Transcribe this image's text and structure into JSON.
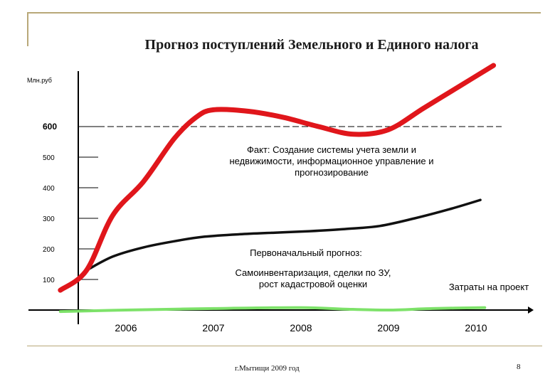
{
  "title": "Прогноз поступлений Земельного и Единого налога",
  "footer": "г.Мытищи 2009 год",
  "page_number": "8",
  "chart_data": {
    "type": "line",
    "ylabel": "Млн.руб",
    "x_categories": [
      "2006",
      "2007",
      "2008",
      "2009",
      "2010"
    ],
    "y_ticks": [
      "100",
      "200",
      "300",
      "400",
      "500",
      "600"
    ],
    "reference_line": {
      "y": 600,
      "style": "dashed"
    },
    "series": [
      {
        "name": "Факт: Создание системы учета земли и недвижимости, информационное управление и прогнозирование",
        "color": "#e0161b",
        "x": [
          2005.25,
          2005.55,
          2005.85,
          2006.2,
          2006.55,
          2006.8,
          2007.0,
          2007.4,
          2007.8,
          2008.2,
          2008.6,
          2009.0,
          2009.4,
          2009.8,
          2010.2
        ],
        "y": [
          65,
          130,
          310,
          420,
          560,
          630,
          655,
          650,
          630,
          600,
          575,
          590,
          660,
          730,
          800
        ]
      },
      {
        "name": "Первоначальный прогноз: Самоинвентаризация, сделки по ЗУ, рост кадастровой оценки",
        "color": "#111111",
        "x": [
          2005.55,
          2005.85,
          2006.2,
          2006.55,
          2006.9,
          2007.3,
          2007.7,
          2008.1,
          2008.5,
          2008.9,
          2009.3,
          2009.7,
          2010.05
        ],
        "y": [
          130,
          175,
          205,
          225,
          240,
          248,
          253,
          258,
          265,
          275,
          300,
          330,
          360
        ]
      },
      {
        "name": "Затраты на проект",
        "color": "#7ee26a",
        "x": [
          2005.25,
          2006.0,
          2007.0,
          2008.0,
          2008.5,
          2009.0,
          2009.5,
          2010.1
        ],
        "y": [
          -5,
          0,
          5,
          8,
          3,
          0,
          5,
          8
        ]
      }
    ],
    "annotations": {
      "fact": [
        "Факт: Создание системы учета земли и",
        "недвижимости, информационное управление и",
        "прогнозирование"
      ],
      "forecast_head": "Первоначальный прогноз:",
      "forecast": [
        "Самоинвентаризация, сделки по ЗУ,",
        "рост кадастровой оценки"
      ],
      "costs": "Затраты на проект"
    },
    "colors": {
      "axis": "#000000",
      "frame": "#b8a878"
    }
  }
}
